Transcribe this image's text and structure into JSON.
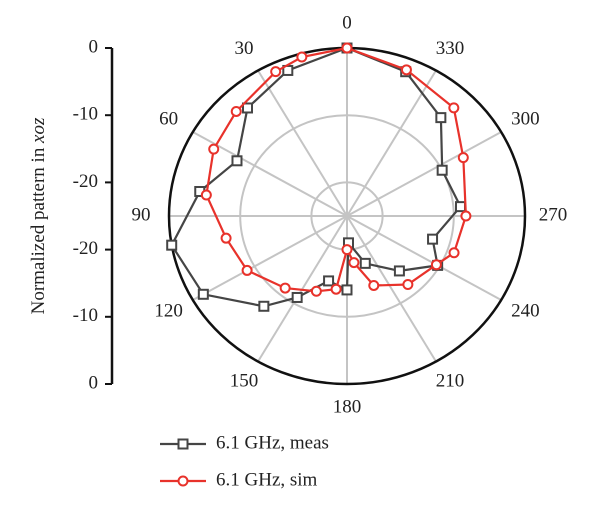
{
  "chart_data": {
    "type": "polar",
    "ylabel": "Normalized pattern in",
    "ylabel_var": "xoz",
    "rlim": [
      -25,
      0
    ],
    "rticks": [
      -20,
      -10,
      0
    ],
    "rticks_lower": [
      -20,
      -10,
      0
    ],
    "thetaticks": [
      0,
      30,
      60,
      90,
      120,
      150,
      180,
      210,
      240,
      270,
      300,
      330
    ],
    "theta_direction": "counterclockwise",
    "theta_zero": "top",
    "series": [
      {
        "name": "6.1 GHz, meas",
        "color": "#454545",
        "marker": "square",
        "theta": [
          0,
          21,
          41,
          62,
          80,
          100,
          120,
          139,
          150,
          165,
          180,
          183,
          200,
          222,
          240,
          254,
          275,
          297,
          318,
          339,
          360
        ],
        "r": [
          0,
          -1.8,
          -3.7,
          -7.5,
          -4,
          0,
          -1.7,
          -7.2,
          -11,
          -15,
          -14,
          -21,
          -17.5,
          -14,
          -10.3,
          -12.5,
          -9,
          -10,
          -5.3,
          -2,
          0
        ]
      },
      {
        "name": "6.1 GHz, sim",
        "color": "#e8322b",
        "marker": "circle",
        "theta": [
          0,
          15,
          25,
          45,
          62,
          81,
          101,
          120,
          141,
          159,
          172,
          180,
          188,
          200,
          220,
          240,
          250,
          270,
          298,
          317,
          339,
          360
        ],
        "r": [
          0,
          -0.5,
          -1.3,
          -3,
          -3.8,
          -5,
          -7.7,
          -8.8,
          -11.2,
          -13,
          -14,
          -20,
          -18,
          -14,
          -11.7,
          -10.5,
          -9,
          -8.3,
          -6.5,
          -3,
          -1.7,
          0
        ]
      }
    ]
  }
}
